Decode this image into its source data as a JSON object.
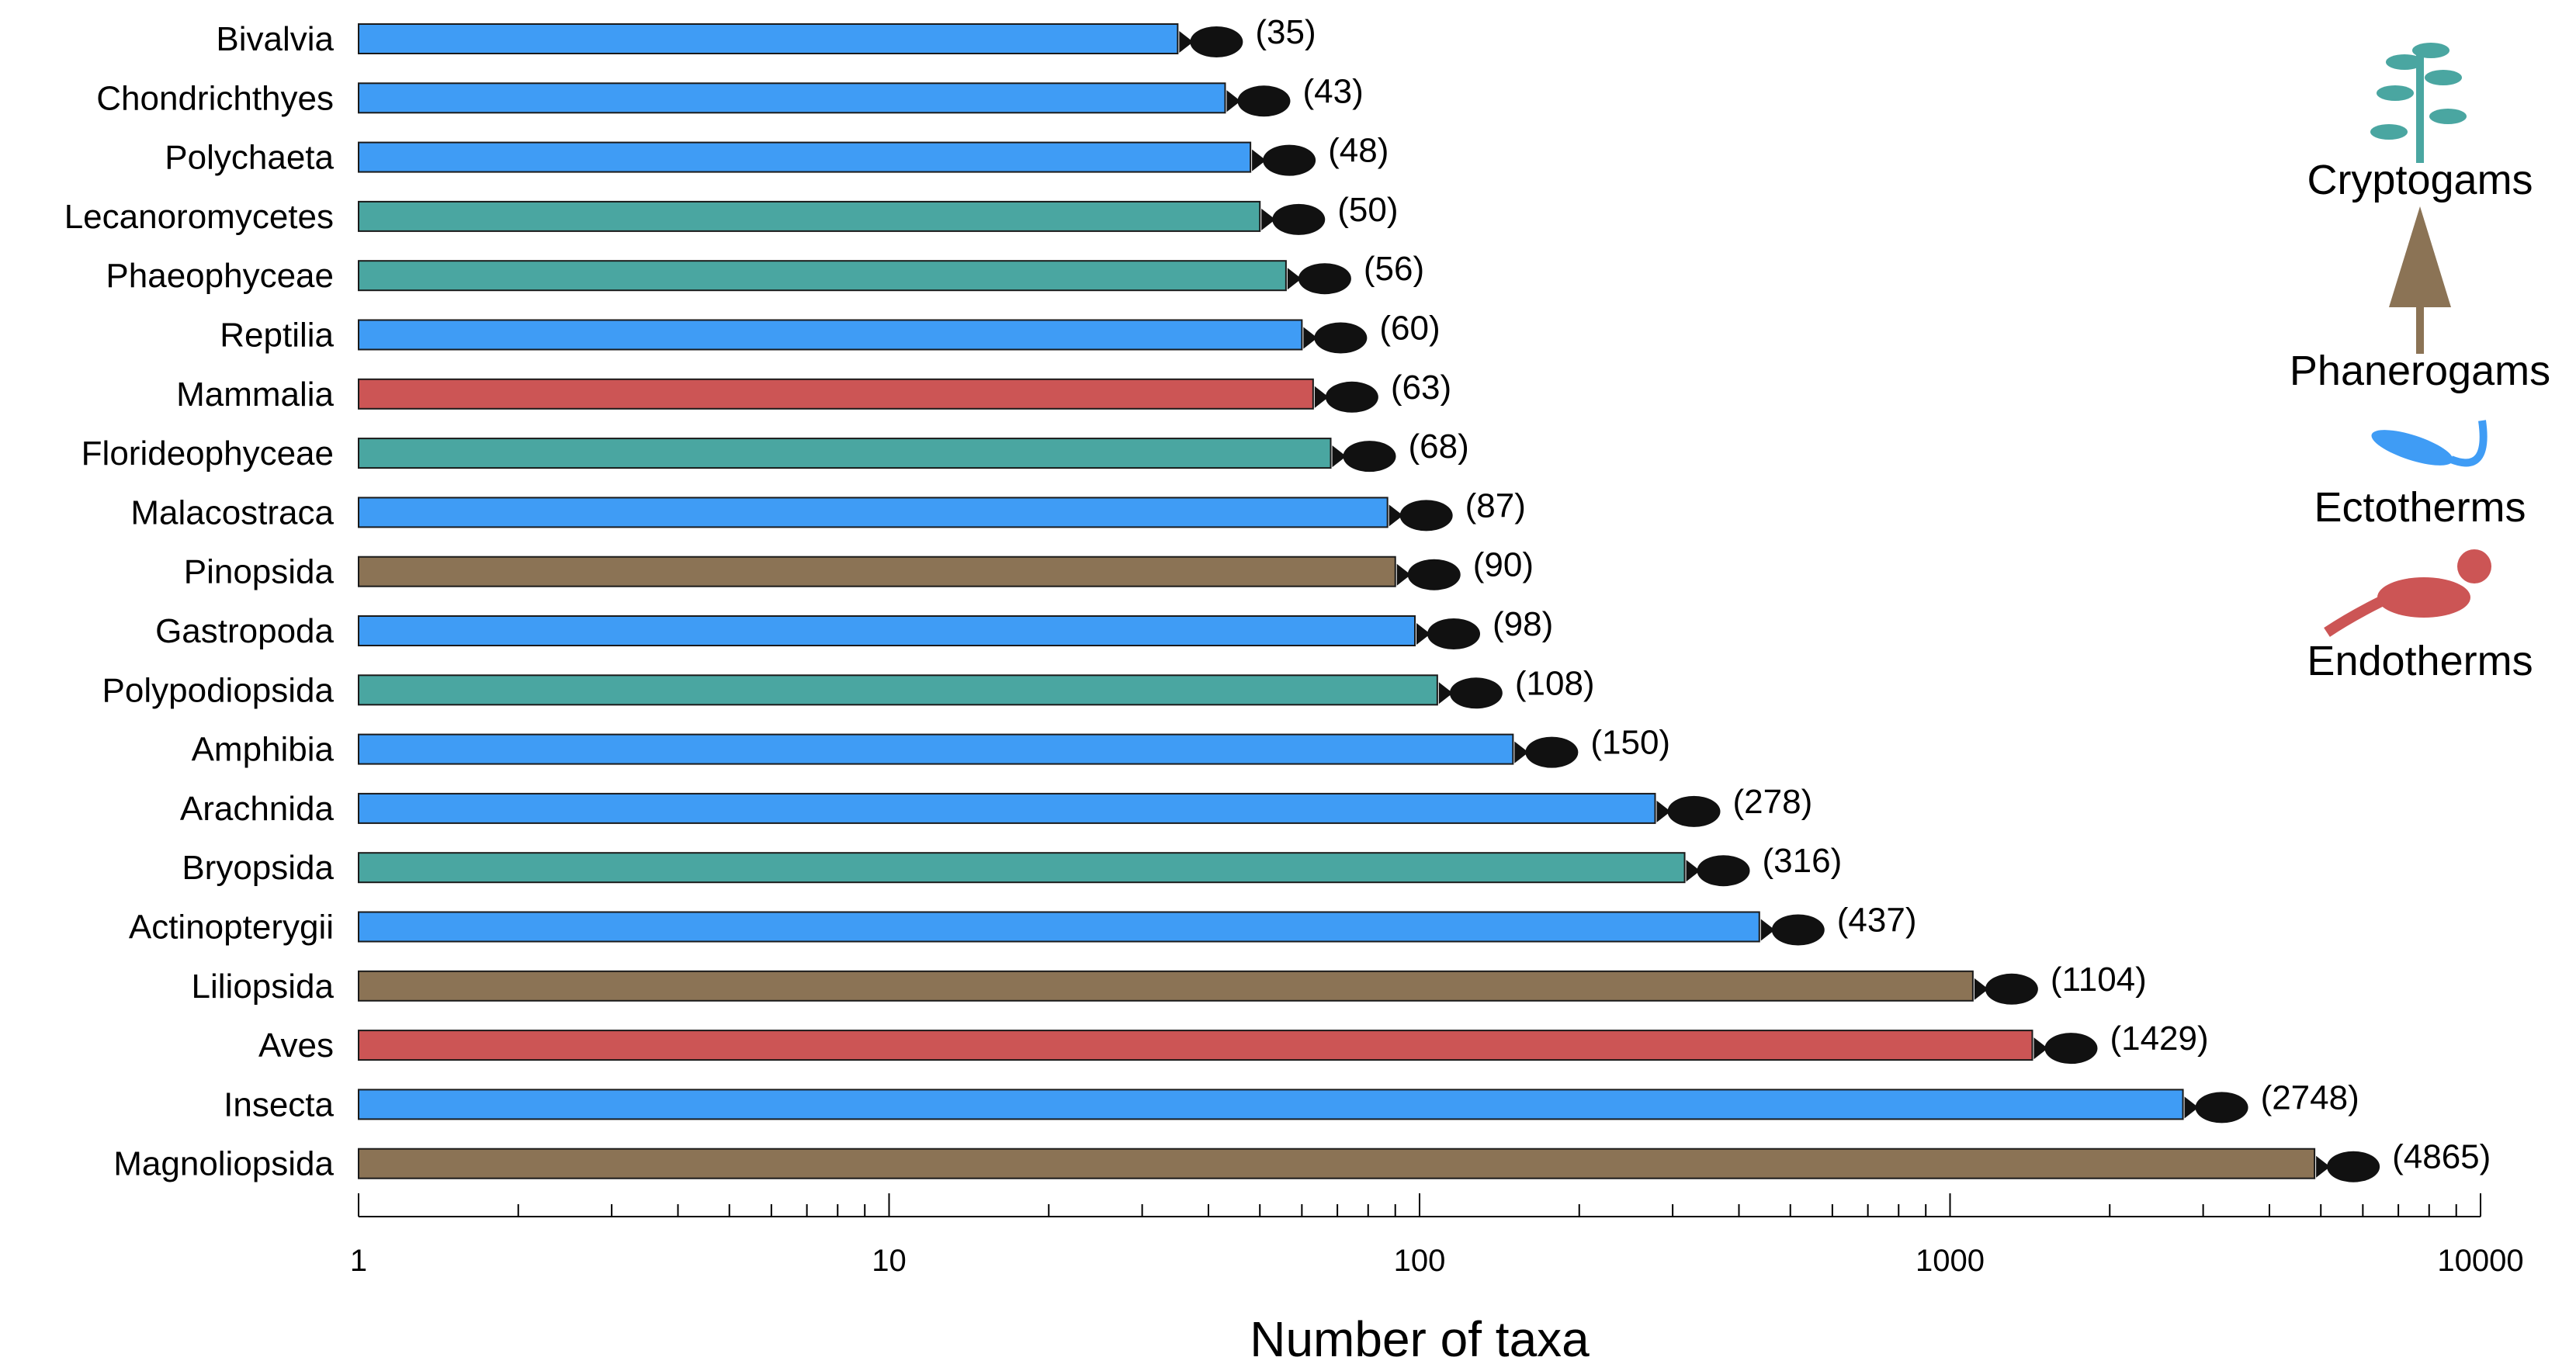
{
  "chart_data": {
    "type": "bar",
    "orientation": "horizontal",
    "x_scale": "log",
    "xlim": [
      1,
      10000
    ],
    "xlabel": "Number of taxa",
    "x_ticks": [
      "1",
      "10",
      "100",
      "1000",
      "10000"
    ],
    "grid": false,
    "legend_position": "right",
    "categories": [
      "Bivalvia",
      "Chondrichthyes",
      "Polychaeta",
      "Lecanoromycetes",
      "Phaeophyceae",
      "Reptilia",
      "Mammalia",
      "Florideophyceae",
      "Malacostraca",
      "Pinopsida",
      "Gastropoda",
      "Polypodiopsida",
      "Amphibia",
      "Arachnida",
      "Bryopsida",
      "Actinopterygii",
      "Liliopsida",
      "Aves",
      "Insecta",
      "Magnoliopsida"
    ],
    "values": [
      35,
      43,
      48,
      50,
      56,
      60,
      63,
      68,
      87,
      90,
      98,
      108,
      150,
      278,
      316,
      437,
      1104,
      1429,
      2748,
      4865
    ],
    "value_labels": [
      "(35)",
      "(43)",
      "(48)",
      "(50)",
      "(56)",
      "(60)",
      "(63)",
      "(68)",
      "(87)",
      "(90)",
      "(98)",
      "(108)",
      "(150)",
      "(278)",
      "(316)",
      "(437)",
      "(1104)",
      "(1429)",
      "(2748)",
      "(4865)"
    ],
    "groups": [
      "Ectotherms",
      "Ectotherms",
      "Ectotherms",
      "Cryptogams",
      "Cryptogams",
      "Ectotherms",
      "Endotherms",
      "Cryptogams",
      "Ectotherms",
      "Phanerogams",
      "Ectotherms",
      "Cryptogams",
      "Ectotherms",
      "Ectotherms",
      "Cryptogams",
      "Ectotherms",
      "Phanerogams",
      "Endotherms",
      "Ectotherms",
      "Phanerogams"
    ],
    "legend": [
      {
        "name": "Cryptogams",
        "color": "#4aa6a1"
      },
      {
        "name": "Phanerogams",
        "color": "#8b7355"
      },
      {
        "name": "Ectotherms",
        "color": "#3f9cf5"
      },
      {
        "name": "Endotherms",
        "color": "#cc5555"
      }
    ]
  }
}
